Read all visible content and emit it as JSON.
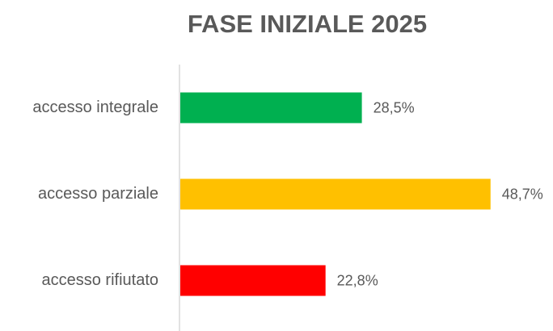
{
  "chart_data": {
    "type": "bar",
    "orientation": "horizontal",
    "title": "FASE INIZIALE 2025",
    "categories": [
      "accesso integrale",
      "accesso parziale",
      "accesso rifiutato"
    ],
    "values": [
      28.5,
      48.7,
      22.8
    ],
    "value_labels": [
      "28,5%",
      "48,7%",
      "22,8%"
    ],
    "colors": [
      "#00b050",
      "#ffc000",
      "#ff0000"
    ]
  }
}
